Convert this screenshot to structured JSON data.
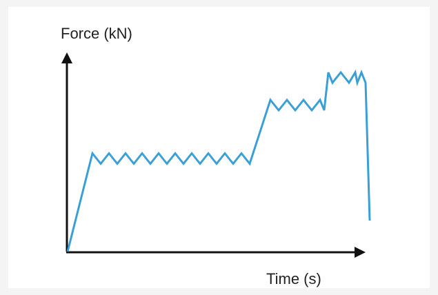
{
  "chart_data": {
    "type": "line",
    "xlabel": "Time (s)",
    "ylabel": "Force (kN)",
    "grid": false,
    "ticks": false,
    "x": [
      0,
      6,
      8,
      10,
      12,
      14,
      16,
      18,
      20,
      22,
      24,
      26,
      28,
      30,
      32,
      34,
      36,
      38,
      40,
      42,
      44,
      49,
      51,
      53,
      55,
      57,
      59,
      61,
      62,
      63,
      64,
      66,
      68,
      69.5,
      70,
      71,
      72,
      73
    ],
    "series": [
      {
        "values": [
          0,
          5.7,
          5.1,
          5.7,
          5.1,
          5.7,
          5.1,
          5.7,
          5.1,
          5.7,
          5.1,
          5.7,
          5.1,
          5.7,
          5.1,
          5.7,
          5.1,
          5.7,
          5.1,
          5.7,
          5.1,
          8.8,
          8.2,
          8.8,
          8.2,
          8.8,
          8.2,
          8.8,
          8.2,
          10.4,
          9.8,
          10.4,
          9.8,
          10.4,
          9.8,
          10.4,
          9.8,
          1.8
        ],
        "color": "#3a9fd6"
      }
    ],
    "xlim": [
      0,
      76
    ],
    "ylim": [
      0,
      12
    ],
    "axis_color": "#111111"
  }
}
